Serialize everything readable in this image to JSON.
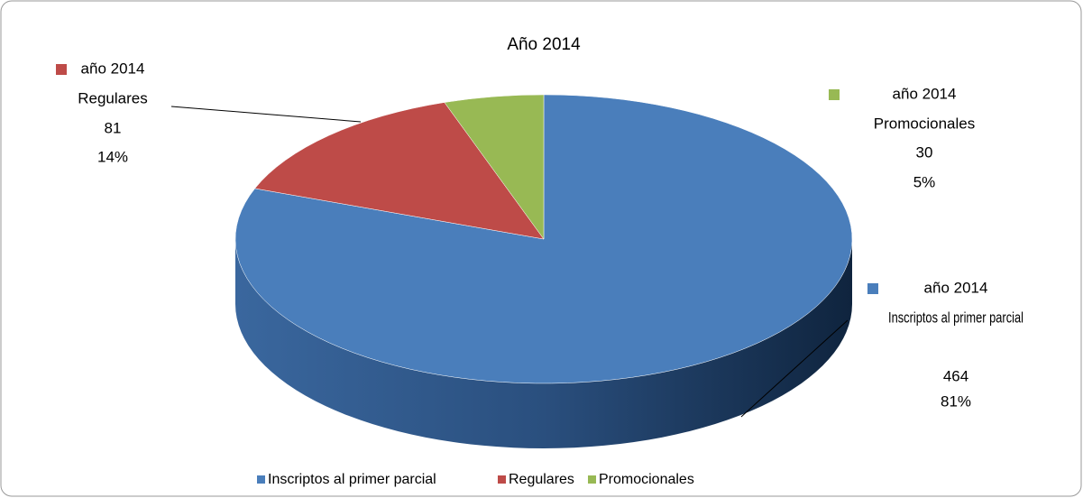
{
  "chart_data": {
    "type": "pie",
    "title": "Año 2014",
    "series_name": "año 2014",
    "categories": [
      "Inscriptos al primer parcial",
      "Regulares",
      "Promocionales"
    ],
    "values": [
      464,
      81,
      30
    ],
    "percent_labels": [
      "81%",
      "14%",
      "5%"
    ],
    "colors": [
      "#4a7ebb",
      "#be4b48",
      "#98b954"
    ],
    "legend": "bottom"
  }
}
